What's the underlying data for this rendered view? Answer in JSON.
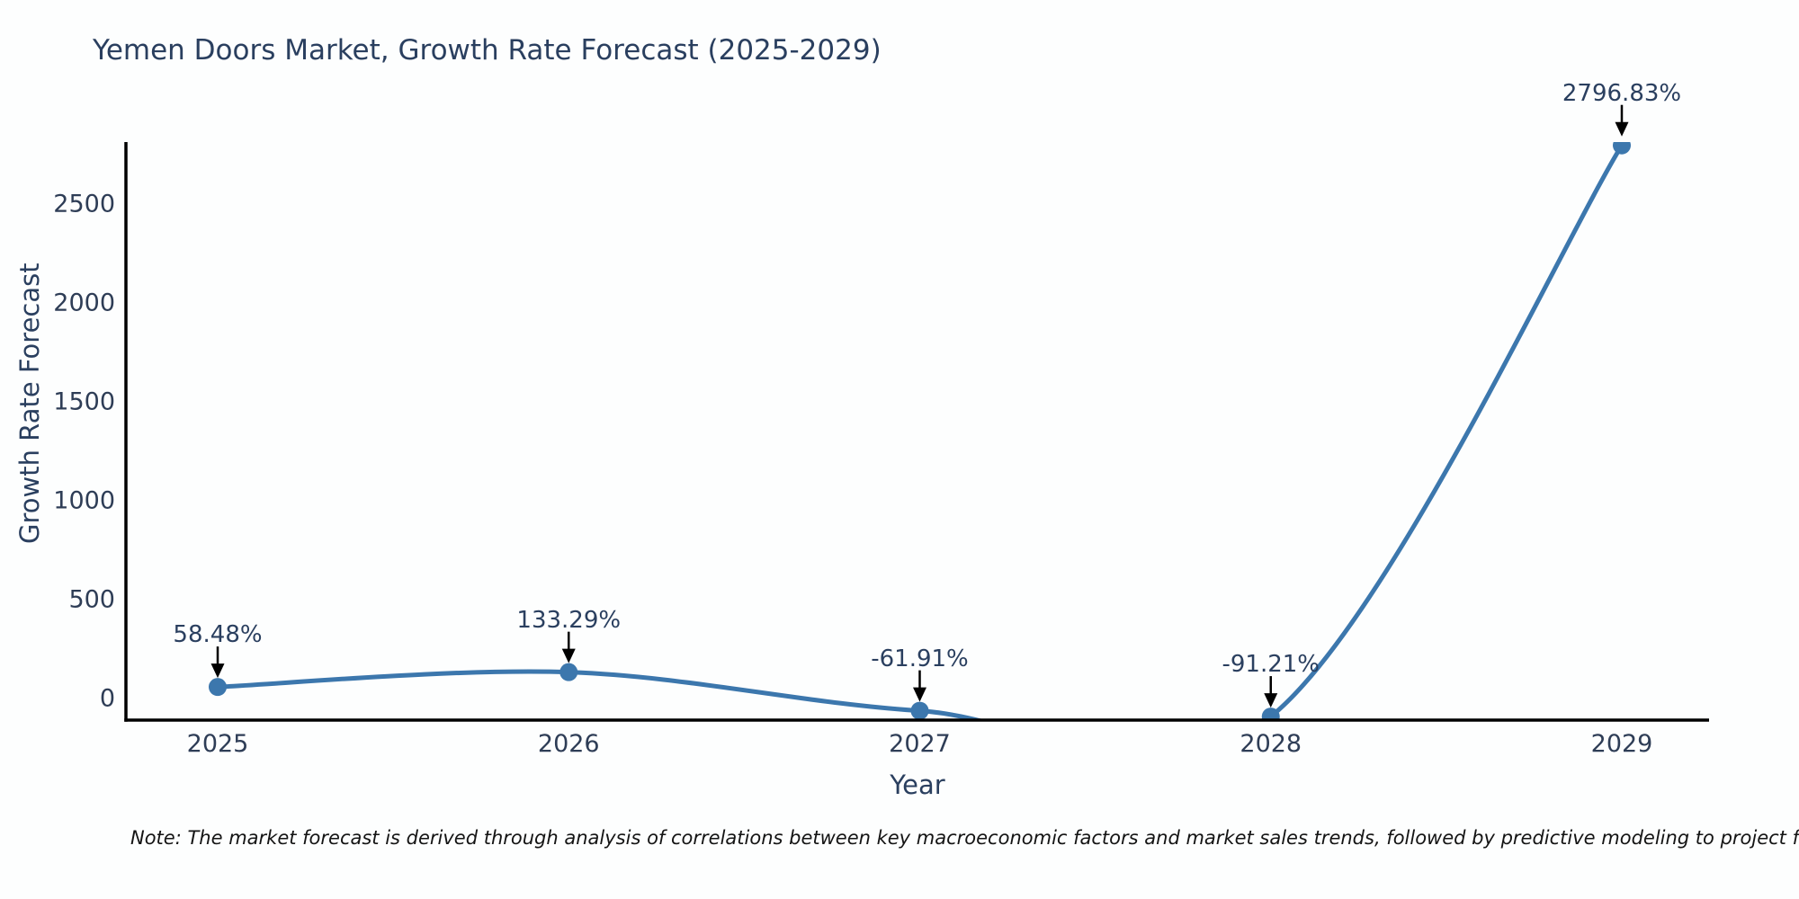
{
  "chart_data": {
    "type": "line",
    "title": "Yemen Doors Market, Growth Rate Forecast (2025-2029)",
    "xlabel": "Year",
    "ylabel": "Growth Rate Forecast",
    "categories": [
      "2025",
      "2026",
      "2027",
      "2028",
      "2029"
    ],
    "values": [
      58.48,
      133.29,
      -61.91,
      -91.21,
      2796.83
    ],
    "point_labels": [
      "58.48%",
      "133.29%",
      "-61.91%",
      "-91.21%",
      "2796.83%"
    ],
    "yticks": [
      0,
      500,
      1000,
      1500,
      2000,
      2500
    ],
    "ylim": [
      -118,
      2814
    ],
    "curve": "spline",
    "grid": false,
    "legend": "none",
    "line_color": "#3c77ad",
    "marker_color": "#3c77ad",
    "axis_color": "#000000",
    "arrow_color": "#000000",
    "text_color": "#2a3f5f"
  },
  "note": "Note: The market forecast is derived through analysis of correlations between key macroeconomic factors and market sales trends, followed by predictive modeling to project future sa"
}
